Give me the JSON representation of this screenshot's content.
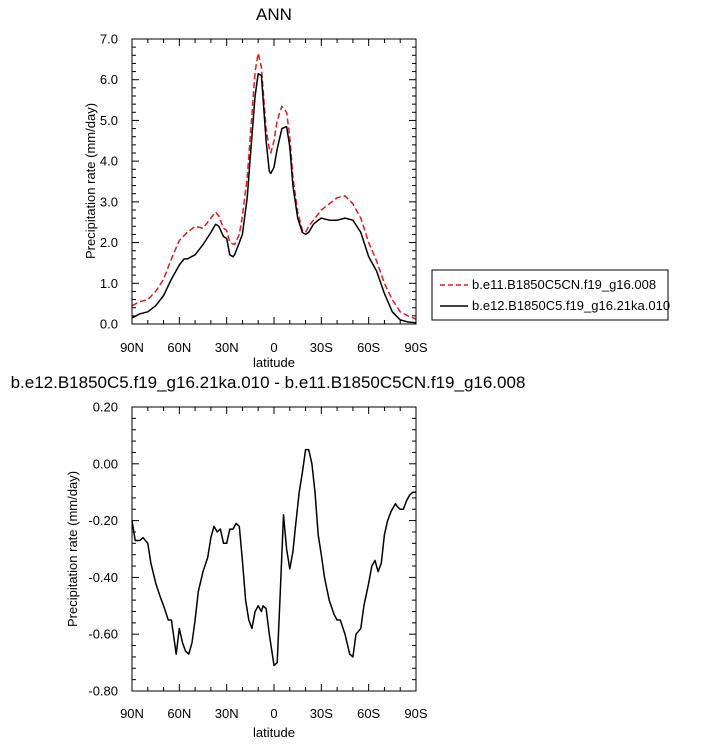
{
  "chart_data": [
    {
      "type": "line",
      "title": "ANN",
      "xlabel": "latitude",
      "ylabel": "Precipitation rate (mm/day)",
      "xlim": [
        90,
        -90
      ],
      "ylim": [
        0,
        7
      ],
      "x_ticks": [
        90,
        60,
        30,
        0,
        -30,
        -60,
        -90
      ],
      "x_tick_labels": [
        "90N",
        "60N",
        "30N",
        "0",
        "30S",
        "60S",
        "90S"
      ],
      "y_ticks": [
        0,
        1,
        2,
        3,
        4,
        5,
        6,
        7
      ],
      "y_tick_labels": [
        "0.0",
        "1.0",
        "2.0",
        "3.0",
        "4.0",
        "5.0",
        "6.0",
        "7.0"
      ],
      "legend_position": "right",
      "grid": false,
      "series": [
        {
          "name": "b.e11.B1850C5CN.f19_g16.008",
          "color": "#e41a1c",
          "dash": "dashed",
          "x": [
            90,
            85,
            80,
            75,
            70,
            65,
            60,
            55,
            50,
            45,
            40,
            37,
            35,
            32,
            30,
            28,
            25,
            22,
            20,
            17,
            15,
            12,
            10,
            8,
            5,
            3,
            2,
            0,
            -2,
            -5,
            -8,
            -10,
            -12,
            -15,
            -18,
            -20,
            -22,
            -25,
            -28,
            -30,
            -35,
            -40,
            -45,
            -50,
            -55,
            -60,
            -65,
            -70,
            -75,
            -80,
            -85,
            -90
          ],
          "values": [
            0.45,
            0.55,
            0.6,
            0.8,
            1.1,
            1.6,
            2.05,
            2.25,
            2.4,
            2.35,
            2.6,
            2.75,
            2.65,
            2.35,
            2.3,
            2.0,
            1.95,
            2.2,
            2.65,
            3.6,
            4.6,
            6.2,
            6.65,
            6.3,
            4.8,
            4.3,
            4.2,
            4.5,
            5.0,
            5.35,
            5.2,
            4.6,
            3.6,
            2.75,
            2.3,
            2.25,
            2.4,
            2.55,
            2.7,
            2.8,
            2.95,
            3.1,
            3.15,
            2.95,
            2.6,
            2.0,
            1.55,
            1.0,
            0.6,
            0.3,
            0.2,
            0.12
          ]
        },
        {
          "name": "b.e12.B1850C5.f19_g16.21ka.010",
          "color": "#000000",
          "dash": "solid",
          "x": [
            90,
            85,
            80,
            75,
            70,
            65,
            60,
            57,
            55,
            50,
            45,
            40,
            37,
            35,
            32,
            30,
            28,
            26,
            25,
            22,
            20,
            17,
            15,
            12,
            10,
            8,
            5,
            3,
            2,
            0,
            -2,
            -5,
            -8,
            -10,
            -12,
            -15,
            -18,
            -20,
            -22,
            -25,
            -28,
            -30,
            -35,
            -40,
            -45,
            -50,
            -55,
            -60,
            -65,
            -70,
            -75,
            -80,
            -85,
            -90
          ],
          "values": [
            0.15,
            0.25,
            0.3,
            0.45,
            0.7,
            1.1,
            1.45,
            1.6,
            1.6,
            1.7,
            1.95,
            2.25,
            2.45,
            2.4,
            2.15,
            2.1,
            1.7,
            1.65,
            1.7,
            2.0,
            2.2,
            3.1,
            4.1,
            5.6,
            6.15,
            6.1,
            4.5,
            3.75,
            3.7,
            3.85,
            4.3,
            4.8,
            4.85,
            4.35,
            3.4,
            2.6,
            2.25,
            2.2,
            2.25,
            2.45,
            2.55,
            2.6,
            2.55,
            2.55,
            2.6,
            2.55,
            2.25,
            1.65,
            1.3,
            0.75,
            0.3,
            0.1,
            0.05,
            0.03
          ]
        }
      ]
    },
    {
      "type": "line",
      "title": "b.e12.B1850C5.f19_g16.21ka.010 - b.e11.B1850C5CN.f19_g16.008",
      "xlabel": "latitude",
      "ylabel": "Precipitation rate (mm/day)",
      "xlim": [
        90,
        -90
      ],
      "ylim": [
        -0.8,
        0.2
      ],
      "x_ticks": [
        90,
        60,
        30,
        0,
        -30,
        -60,
        -90
      ],
      "x_tick_labels": [
        "90N",
        "60N",
        "30N",
        "0",
        "30S",
        "60S",
        "90S"
      ],
      "y_ticks": [
        -0.8,
        -0.6,
        -0.4,
        -0.2,
        0,
        0.2
      ],
      "y_tick_labels": [
        "-0.80",
        "-0.60",
        "-0.40",
        "-0.20",
        "0.00",
        "0.20"
      ],
      "grid": false,
      "series": [
        {
          "color": "#000000",
          "dash": "solid",
          "x": [
            90,
            88,
            85,
            83,
            80,
            78,
            75,
            72,
            70,
            67,
            65,
            62,
            60,
            58,
            56,
            54,
            52,
            50,
            48,
            45,
            42,
            40,
            38,
            36,
            34,
            32,
            30,
            28,
            26,
            24,
            22,
            20,
            18,
            16,
            14,
            12,
            10,
            8,
            7,
            5,
            3,
            0,
            -2,
            -4,
            -6,
            -8,
            -10,
            -12,
            -14,
            -16,
            -18,
            -20,
            -22,
            -24,
            -26,
            -28,
            -30,
            -32,
            -35,
            -38,
            -40,
            -42,
            -45,
            -48,
            -50,
            -52,
            -55,
            -57,
            -60,
            -62,
            -64,
            -66,
            -68,
            -70,
            -72,
            -74,
            -75,
            -77,
            -78,
            -80,
            -82,
            -84,
            -86,
            -88,
            -90
          ],
          "values": [
            -0.2,
            -0.27,
            -0.27,
            -0.26,
            -0.28,
            -0.35,
            -0.42,
            -0.47,
            -0.5,
            -0.55,
            -0.55,
            -0.67,
            -0.58,
            -0.63,
            -0.66,
            -0.67,
            -0.63,
            -0.55,
            -0.45,
            -0.38,
            -0.33,
            -0.26,
            -0.22,
            -0.24,
            -0.23,
            -0.28,
            -0.28,
            -0.23,
            -0.23,
            -0.21,
            -0.22,
            -0.34,
            -0.48,
            -0.55,
            -0.58,
            -0.52,
            -0.5,
            -0.52,
            -0.5,
            -0.51,
            -0.6,
            -0.71,
            -0.7,
            -0.45,
            -0.18,
            -0.3,
            -0.37,
            -0.31,
            -0.2,
            -0.1,
            -0.03,
            0.05,
            0.05,
            0.0,
            -0.1,
            -0.25,
            -0.32,
            -0.4,
            -0.48,
            -0.53,
            -0.55,
            -0.55,
            -0.6,
            -0.67,
            -0.68,
            -0.6,
            -0.58,
            -0.5,
            -0.42,
            -0.36,
            -0.34,
            -0.38,
            -0.35,
            -0.25,
            -0.2,
            -0.17,
            -0.16,
            -0.14,
            -0.15,
            -0.16,
            -0.16,
            -0.13,
            -0.11,
            -0.1,
            -0.1
          ]
        }
      ]
    }
  ]
}
